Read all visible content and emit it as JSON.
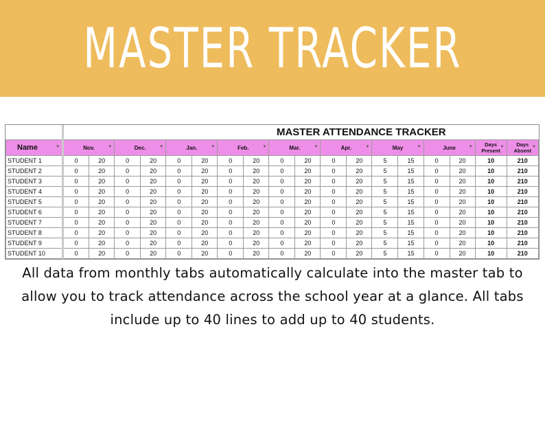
{
  "banner": {
    "title": "MASTER TRACKER",
    "bg": "#eebc5c"
  },
  "sheet": {
    "title": "MASTER ATTENDANCE TRACKER",
    "header_color": "#ee8ee8",
    "name_header": "Name",
    "months": [
      "Nov.",
      "Dec.",
      "Jan.",
      "Feb.",
      "Mar.",
      "Apr.",
      "May",
      "June"
    ],
    "days_present_header": [
      "Days",
      "Present"
    ],
    "days_absent_header": [
      "Days",
      "Absent"
    ],
    "filter_icon": "filter-dropdown-icon",
    "rows": [
      {
        "name": "STUDENT 1",
        "cells": [
          "0",
          "20",
          "0",
          "20",
          "0",
          "20",
          "0",
          "20",
          "0",
          "20",
          "0",
          "20",
          "5",
          "15",
          "0",
          "20"
        ],
        "present": "10",
        "absent": "210"
      },
      {
        "name": "STUDENT 2",
        "cells": [
          "0",
          "20",
          "0",
          "20",
          "0",
          "20",
          "0",
          "20",
          "0",
          "20",
          "0",
          "20",
          "5",
          "15",
          "0",
          "20"
        ],
        "present": "10",
        "absent": "210"
      },
      {
        "name": "STUDENT 3",
        "cells": [
          "0",
          "20",
          "0",
          "20",
          "0",
          "20",
          "0",
          "20",
          "0",
          "20",
          "0",
          "20",
          "5",
          "15",
          "0",
          "20"
        ],
        "present": "10",
        "absent": "210"
      },
      {
        "name": "STUDENT 4",
        "cells": [
          "0",
          "20",
          "0",
          "20",
          "0",
          "20",
          "0",
          "20",
          "0",
          "20",
          "0",
          "20",
          "5",
          "15",
          "0",
          "20"
        ],
        "present": "10",
        "absent": "210"
      },
      {
        "name": "STUDENT 5",
        "cells": [
          "0",
          "20",
          "0",
          "20",
          "0",
          "20",
          "0",
          "20",
          "0",
          "20",
          "0",
          "20",
          "5",
          "15",
          "0",
          "20"
        ],
        "present": "10",
        "absent": "210"
      },
      {
        "name": "STUDENT 6",
        "cells": [
          "0",
          "20",
          "0",
          "20",
          "0",
          "20",
          "0",
          "20",
          "0",
          "20",
          "0",
          "20",
          "5",
          "15",
          "0",
          "20"
        ],
        "present": "10",
        "absent": "210"
      },
      {
        "name": "STUDENT 7",
        "cells": [
          "0",
          "20",
          "0",
          "20",
          "0",
          "20",
          "0",
          "20",
          "0",
          "20",
          "0",
          "20",
          "5",
          "15",
          "0",
          "20"
        ],
        "present": "10",
        "absent": "210"
      },
      {
        "name": "STUDENT 8",
        "cells": [
          "0",
          "20",
          "0",
          "20",
          "0",
          "20",
          "0",
          "20",
          "0",
          "20",
          "0",
          "20",
          "5",
          "15",
          "0",
          "20"
        ],
        "present": "10",
        "absent": "210"
      },
      {
        "name": "STUDENT 9",
        "cells": [
          "0",
          "20",
          "0",
          "20",
          "0",
          "20",
          "0",
          "20",
          "0",
          "20",
          "0",
          "20",
          "5",
          "15",
          "0",
          "20"
        ],
        "present": "10",
        "absent": "210"
      },
      {
        "name": "STUDENT 10",
        "cells": [
          "0",
          "20",
          "0",
          "20",
          "0",
          "20",
          "0",
          "20",
          "0",
          "20",
          "0",
          "20",
          "5",
          "15",
          "0",
          "20"
        ],
        "present": "10",
        "absent": "210"
      }
    ]
  },
  "description": "All data from monthly tabs automatically calculate into the master tab to allow you to track attendance across the school year at a glance. All tabs include up to 40 lines to add up to 40 students."
}
